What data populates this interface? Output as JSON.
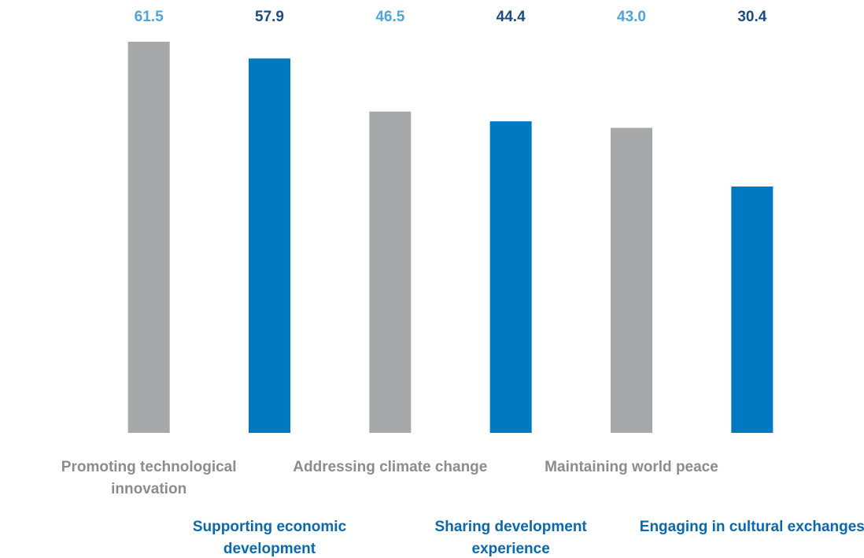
{
  "chart_data": {
    "type": "bar",
    "categories": [
      "Promoting technological innovation",
      "Supporting economic development",
      "Addressing climate change",
      "Sharing development experience",
      "Maintaining world peace",
      "Engaging in cultural exchanges"
    ],
    "values": [
      61.5,
      57.9,
      46.5,
      44.4,
      43.0,
      30.4
    ],
    "value_labels": [
      "61.5",
      "57.9",
      "46.5",
      "44.4",
      "43.0",
      "30.4"
    ],
    "colors": [
      "#a7a8aa",
      "#0079c1",
      "#a7a8aa",
      "#0079c1",
      "#a7a8aa",
      "#0079c1"
    ],
    "value_label_colors": [
      "#4ea5dd",
      "#1b4b85",
      "#4ea5dd",
      "#1b4b85",
      "#4ea5dd",
      "#1b4b85"
    ],
    "label_colors": [
      "#8c8c8c",
      "#0b68ad",
      "#8c8c8c",
      "#0b68ad",
      "#8c8c8c",
      "#0b68ad"
    ],
    "ylim": [
      -22.5,
      61.5
    ]
  }
}
